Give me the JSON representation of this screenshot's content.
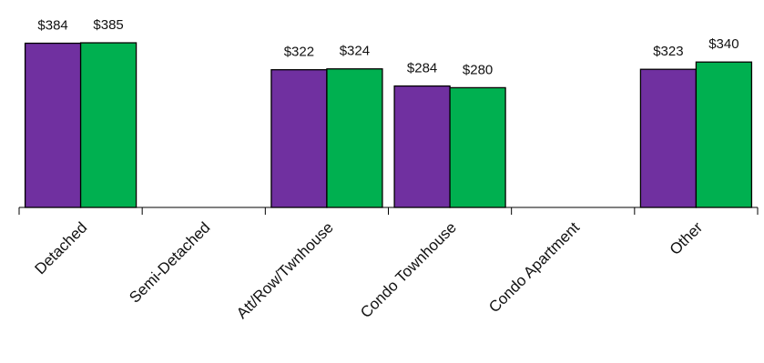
{
  "chart_data": {
    "type": "bar",
    "categories": [
      "Detached",
      "Semi-Detached",
      "Att/Row/Twnhouse",
      "Condo Townhouse",
      "Condo Apartment",
      "Other"
    ],
    "series": [
      {
        "values": [
          384,
          null,
          322,
          284,
          null,
          323
        ],
        "color": "#7030a0"
      },
      {
        "values": [
          385,
          null,
          324,
          280,
          null,
          340
        ],
        "color": "#00b050"
      }
    ],
    "data_labels": [
      [
        "$384",
        null,
        "$322",
        "$284",
        null,
        "$323"
      ],
      [
        "$385",
        null,
        "$324",
        "$280",
        null,
        "$340"
      ]
    ],
    "ylim": [
      0,
      400
    ],
    "title": "",
    "xlabel": "",
    "ylabel": "",
    "legend": "none",
    "grid": false
  }
}
